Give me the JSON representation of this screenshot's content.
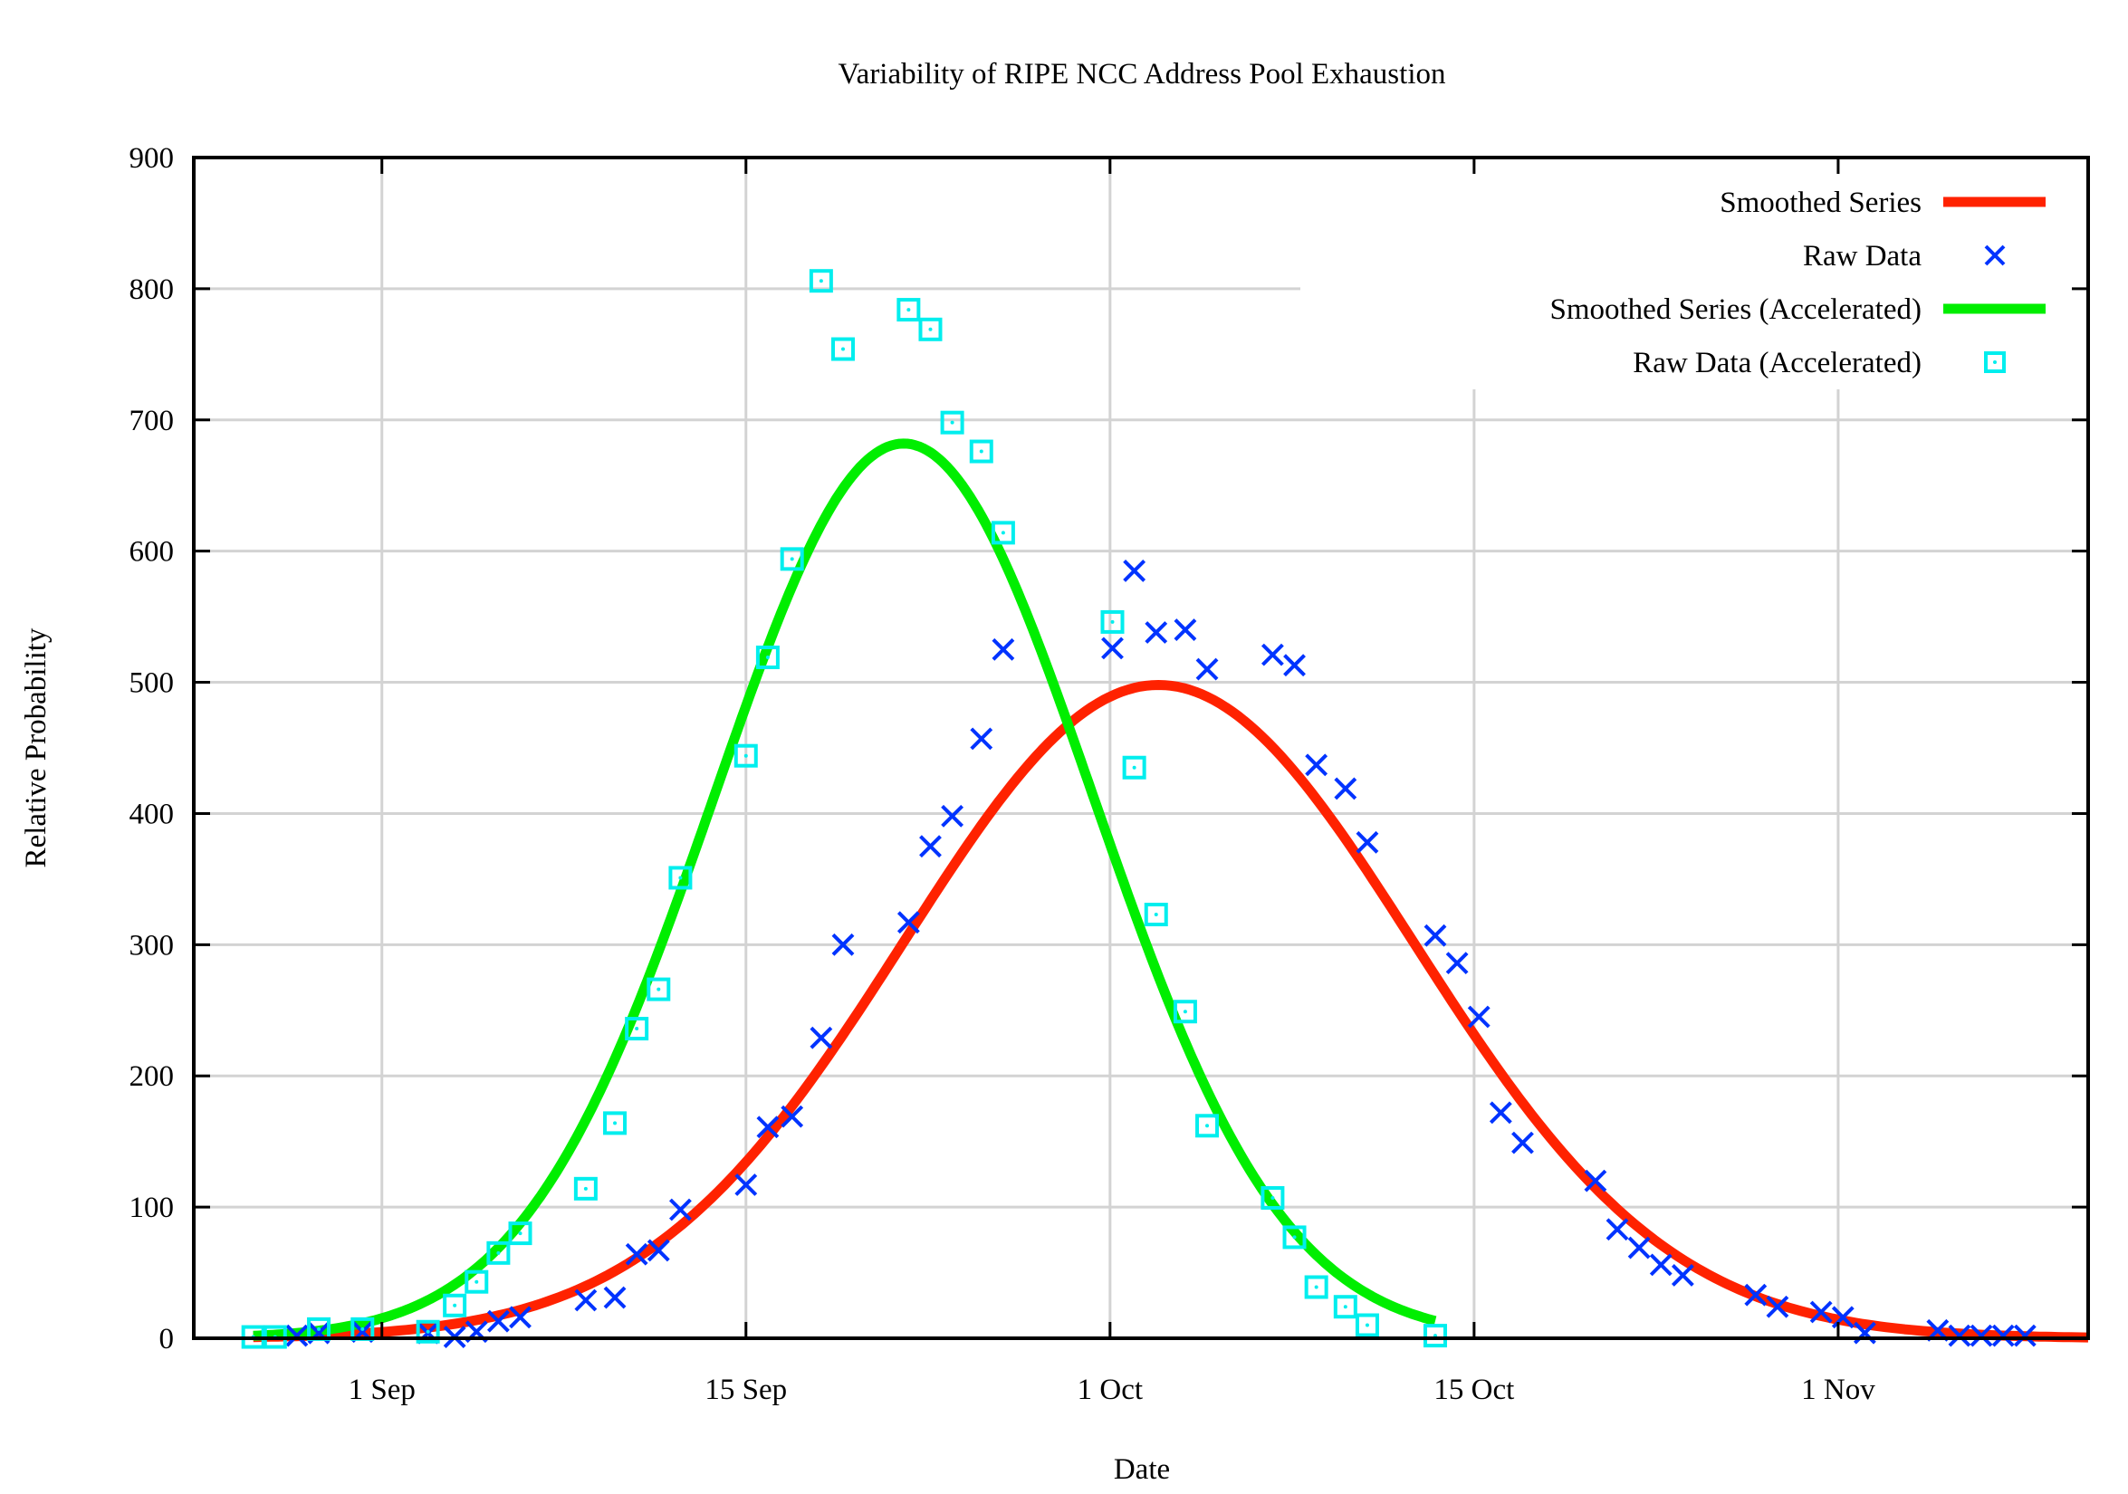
{
  "chart_data": {
    "type": "scatter",
    "title": "Variability of RIPE NCC Address Pool Exhaustion",
    "xlabel": "Date",
    "ylabel": "Relative Probability",
    "x_units": "days since 1 Sep",
    "xlim": [
      -7.75,
      70.3
    ],
    "ylim": [
      0,
      900
    ],
    "grid": true,
    "legend_position": "top-right",
    "xticks": [
      {
        "value": 0,
        "label": "1 Sep"
      },
      {
        "value": 15,
        "label": "15 Sep"
      },
      {
        "value": 30,
        "label": "1 Oct"
      },
      {
        "value": 45,
        "label": "15 Oct"
      },
      {
        "value": 60,
        "label": "1 Nov"
      }
    ],
    "yticks": [
      0,
      100,
      200,
      300,
      400,
      500,
      600,
      700,
      800,
      900
    ],
    "series": [
      {
        "name": "Smoothed Series",
        "kind": "line",
        "color": "#ff2200",
        "function": "gaussian",
        "amplitude": 498,
        "mean": 32.0,
        "sigma": 10.5,
        "x_range": [
          -5.3,
          70.3
        ]
      },
      {
        "name": "Raw Data",
        "kind": "points",
        "marker": "cross",
        "color": "#0033ff",
        "x": [
          -3.5,
          -2.6,
          -0.8,
          1.9,
          3.0,
          3.9,
          4.8,
          5.7,
          8.4,
          9.6,
          10.5,
          11.4,
          12.3,
          15.0,
          15.9,
          16.9,
          18.1,
          19.0,
          21.7,
          22.6,
          23.5,
          24.7,
          25.6,
          30.1,
          31.0,
          31.9,
          33.1,
          34.0,
          36.7,
          37.6,
          38.5,
          39.7,
          40.6,
          43.4,
          44.3,
          45.2,
          46.1,
          47.0,
          50.0,
          50.9,
          51.8,
          52.7,
          53.6,
          56.6,
          57.5,
          59.3,
          60.2,
          61.1,
          64.1,
          65.0,
          65.9,
          66.8,
          67.7
        ],
        "y": [
          2,
          4,
          5,
          4,
          1,
          5,
          13,
          16,
          29,
          31,
          64,
          67,
          98,
          117,
          161,
          169,
          229,
          300,
          317,
          375,
          398,
          457,
          525,
          526,
          585,
          538,
          540,
          510,
          521,
          513,
          437,
          419,
          378,
          307,
          286,
          245,
          172,
          149,
          120,
          83,
          69,
          56,
          48,
          33,
          24,
          20,
          16,
          4,
          6,
          2,
          2,
          2,
          2
        ]
      },
      {
        "name": "Smoothed Series (Accelerated)",
        "kind": "line",
        "color": "#00ee00",
        "function": "gaussian",
        "amplitude": 682,
        "mean": 21.5,
        "sigma": 7.8,
        "x_range": [
          -5.3,
          43.4
        ]
      },
      {
        "name": "Raw Data (Accelerated)",
        "kind": "points",
        "marker": "dotted-square",
        "color": "#00eeee",
        "x": [
          -5.3,
          -4.4,
          -2.6,
          -0.8,
          1.9,
          3.0,
          3.9,
          4.8,
          5.7,
          8.4,
          9.6,
          10.5,
          11.4,
          12.3,
          15.0,
          15.9,
          16.9,
          18.1,
          19.0,
          21.7,
          22.6,
          23.5,
          24.7,
          25.6,
          30.1,
          31.0,
          31.9,
          33.1,
          34.0,
          36.7,
          37.6,
          38.5,
          39.7,
          40.6,
          43.4
        ],
        "y": [
          1,
          1,
          7,
          7,
          5,
          25,
          43,
          65,
          80,
          114,
          164,
          236,
          266,
          351,
          444,
          519,
          594,
          806,
          754,
          784,
          769,
          698,
          676,
          614,
          546,
          435,
          323,
          249,
          162,
          107,
          77,
          39,
          24,
          10,
          2
        ]
      }
    ]
  }
}
